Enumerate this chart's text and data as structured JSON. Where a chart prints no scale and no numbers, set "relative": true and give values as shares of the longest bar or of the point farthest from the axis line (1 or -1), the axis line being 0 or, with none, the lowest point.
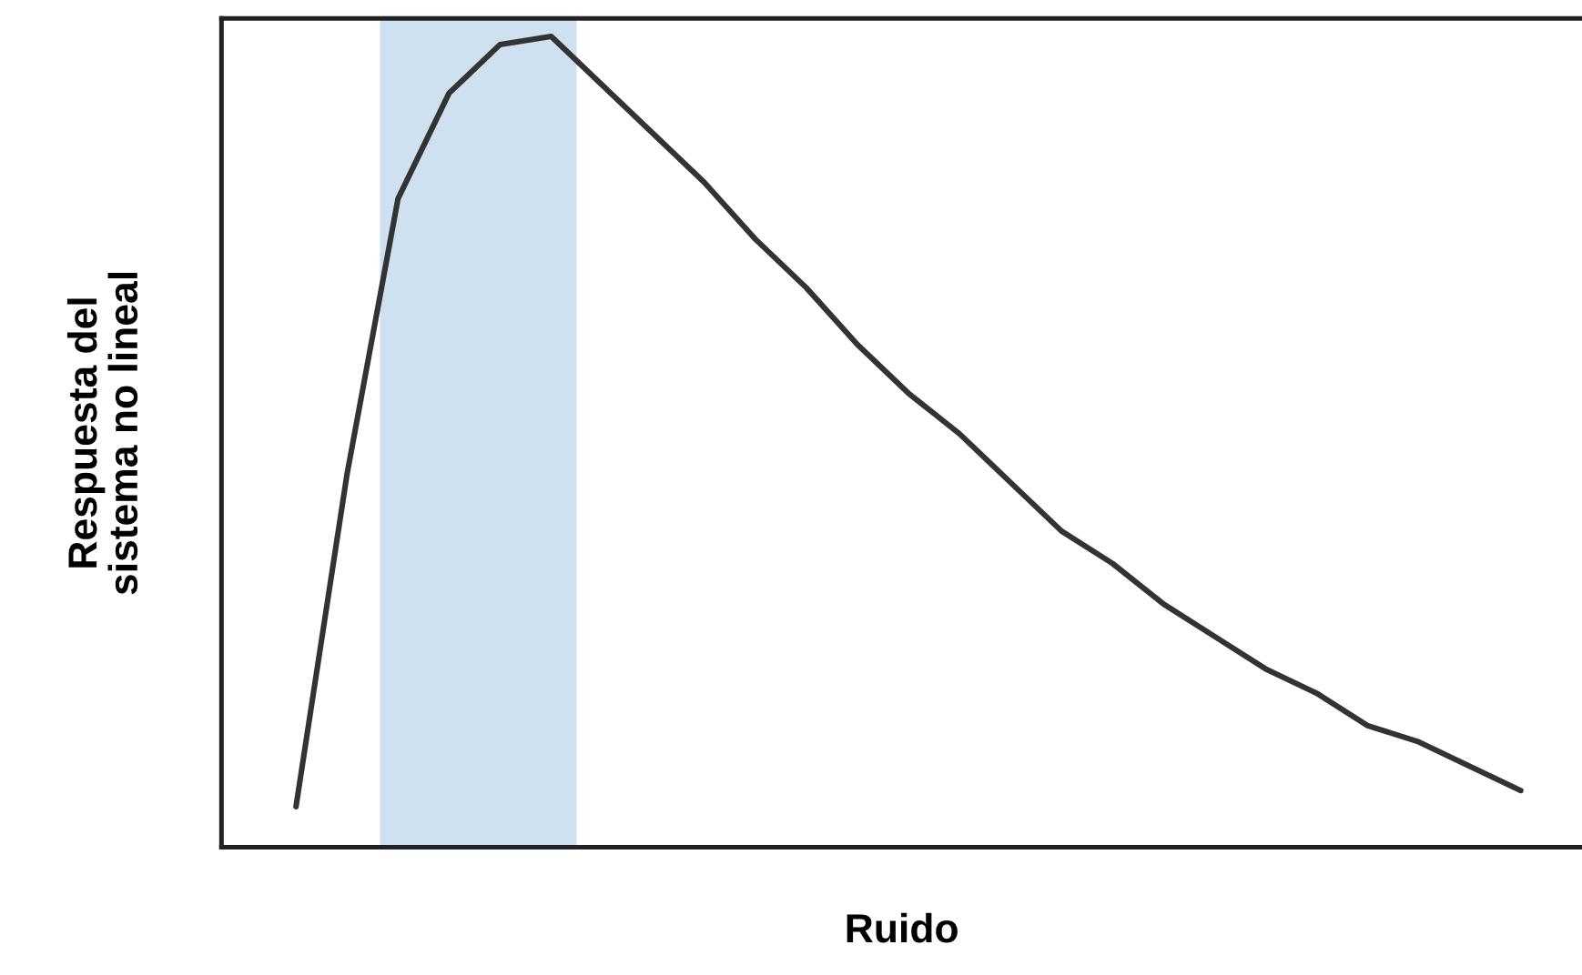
{
  "chart_data": {
    "type": "line",
    "relative": true,
    "xlabel": "Ruido",
    "ylabel": "Respuesta del\nsistema no lineal",
    "categories": [
      null,
      null,
      null,
      null,
      null,
      null,
      null,
      null,
      null,
      null,
      null,
      null,
      null,
      null,
      null,
      null,
      null,
      null,
      null,
      null,
      null,
      null,
      null,
      null,
      null
    ],
    "series": [
      {
        "color": "#333333",
        "values": [
          0.05,
          0.46,
          0.8,
          0.93,
          0.99,
          1.0,
          0.94,
          0.88,
          0.82,
          0.75,
          0.69,
          0.62,
          0.56,
          0.51,
          0.45,
          0.39,
          0.35,
          0.3,
          0.26,
          0.22,
          0.19,
          0.15,
          0.13,
          0.1,
          0.07
        ]
      }
    ],
    "grid": false,
    "legend": false,
    "tick_labels": false
  }
}
